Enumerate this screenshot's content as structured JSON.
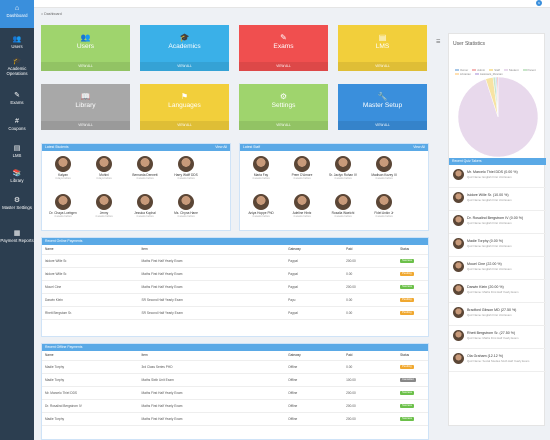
{
  "topbar": {
    "left_text": "",
    "right_text": "",
    "bell_count": "9"
  },
  "sidebar": {
    "items": [
      {
        "label": "Dashboard",
        "icon": "home-icon",
        "glyph": "⌂"
      },
      {
        "label": "Users",
        "icon": "users-icon",
        "glyph": "👥"
      },
      {
        "label": "Academic Operations",
        "icon": "academic-icon",
        "glyph": "🎓"
      },
      {
        "label": "Exams",
        "icon": "exams-icon",
        "glyph": "✎"
      },
      {
        "label": "Coupons",
        "icon": "coupons-icon",
        "glyph": "#"
      },
      {
        "label": "LMS",
        "icon": "lms-icon",
        "glyph": "▤"
      },
      {
        "label": "Library",
        "icon": "library-icon",
        "glyph": "📚"
      },
      {
        "label": "Master Settings",
        "icon": "settings-icon",
        "glyph": "⚙"
      },
      {
        "label": "Payment Reports",
        "icon": "payment-icon",
        "glyph": "▦"
      }
    ]
  },
  "breadcrumb": {
    "home": "Dashboard"
  },
  "tiles": [
    {
      "title": "Users",
      "link": "VIEW ALL",
      "color": "#9fd46d",
      "glyph": "👥"
    },
    {
      "title": "Academics",
      "link": "VIEW ALL",
      "color": "#3ab0e8",
      "glyph": "🎓"
    },
    {
      "title": "Exams",
      "link": "VIEW ALL",
      "color": "#f04f4f",
      "glyph": "✎"
    },
    {
      "title": "LMS",
      "link": "VIEW ALL",
      "color": "#f2cf3b",
      "glyph": "▤"
    },
    {
      "title": "Library",
      "link": "VIEW ALL",
      "color": "#a8a8a8",
      "glyph": "📖"
    },
    {
      "title": "Languages",
      "link": "VIEW ALL",
      "color": "#f2cf3b",
      "glyph": "⚑"
    },
    {
      "title": "Settings",
      "link": "VIEW ALL",
      "color": "#9fd46d",
      "glyph": "⚙"
    },
    {
      "title": "Master Setup",
      "link": "VIEW ALL",
      "color": "#3a8fdc",
      "glyph": "🔧"
    }
  ],
  "latest_students": {
    "title": "Latest Students",
    "view_all": "View All",
    "people": [
      {
        "name": "Kalyan",
        "time": "4 days before"
      },
      {
        "name": "Mohini",
        "time": "4 days before"
      },
      {
        "name": "Bernarda Dennett",
        "time": "4 weeks before"
      },
      {
        "name": "Harry Wolff DDS",
        "time": "4 weeks before"
      },
      {
        "name": "Dr. Chaya Loebgen",
        "time": "4 weeks before"
      },
      {
        "name": "Jenny",
        "time": "4 weeks before"
      },
      {
        "name": "Jessica Kuphal",
        "time": "4 weeks before"
      },
      {
        "name": "Ms. Chyna Hane",
        "time": "4 weeks before"
      }
    ]
  },
  "latest_staff": {
    "title": "Latest Staff",
    "view_all": "View All",
    "people": [
      {
        "name": "Maria Fay",
        "time": "4 weeks before"
      },
      {
        "name": "Prem D'Amore",
        "time": "4 weeks before"
      },
      {
        "name": "Sr. Jaclyn Rohan IV",
        "time": "4 weeks before"
      },
      {
        "name": "Madison Kozey III",
        "time": "4 weeks before"
      },
      {
        "name": "Aniya Hoppe PhD",
        "time": "4 weeks before"
      },
      {
        "name": "Adeline Hintz",
        "time": "4 weeks before"
      },
      {
        "name": "Rosalia Waelchi",
        "time": "4 weeks before"
      },
      {
        "name": "Fidel Ankin Jr",
        "time": "4 weeks before"
      }
    ]
  },
  "online_payments": {
    "title": "Recent Online Payments",
    "headers": [
      "Name",
      "Item",
      "Gateway",
      "Paid",
      "Status"
    ],
    "rows": [
      {
        "name": "Isidore Wille Sr.",
        "item": "Maths First Half Yearly Exam",
        "gateway": "Paypal",
        "paid": "200.00",
        "status": "Success",
        "status_color": "#6cc04a"
      },
      {
        "name": "Isidore Wille Sr.",
        "item": "Maths First Half Yearly Exam",
        "gateway": "Paypal",
        "paid": "0.00",
        "status": "Pending",
        "status_color": "#f0a830"
      },
      {
        "name": "Mouel Cine",
        "item": "Maths First Half Yearly Exam",
        "gateway": "Paypal",
        "paid": "200.00",
        "status": "Success",
        "status_color": "#6cc04a"
      },
      {
        "name": "Darwin Klein",
        "item": "SR Second Half Yearly Exam",
        "gateway": "Payu",
        "paid": "0.00",
        "status": "Pending",
        "status_color": "#f0a830"
      },
      {
        "name": "Rhett Bergstom Sr.",
        "item": "SR Second Half Yearly Exam",
        "gateway": "Paypal",
        "paid": "0.00",
        "status": "Pending",
        "status_color": "#f0a830"
      }
    ]
  },
  "offline_payments": {
    "title": "Recent Offline Payments",
    "headers": [
      "Name",
      "Item",
      "Gateway",
      "Paid",
      "Status"
    ],
    "rows": [
      {
        "name": "Madie Torphy",
        "item": "3rd Class Series PHD",
        "gateway": "Offline",
        "paid": "0.00",
        "status": "Pending",
        "status_color": "#f0a830"
      },
      {
        "name": "Madie Torphy",
        "item": "Maths Sixth Unit Exam",
        "gateway": "Offline",
        "paid": "100.00",
        "status": "Cancelled",
        "status_color": "#888888"
      },
      {
        "name": "Mr. Marcelo Thiel DDS",
        "item": "Maths First Half Yearly Exam",
        "gateway": "Offline",
        "paid": "200.00",
        "status": "Success",
        "status_color": "#6cc04a"
      },
      {
        "name": "Dr. Rosalind Bergstrom IV",
        "item": "Maths First Half Yearly Exam",
        "gateway": "Offline",
        "paid": "200.00",
        "status": "Success",
        "status_color": "#6cc04a"
      },
      {
        "name": "Madie Torphy",
        "item": "Maths First Half Yearly Exam",
        "gateway": "Offline",
        "paid": "200.00",
        "status": "Success",
        "status_color": "#6cc04a"
      }
    ]
  },
  "user_statistics": {
    "title": "User Statistics",
    "legend": [
      {
        "label": "Owner",
        "color": "#a7c7e7"
      },
      {
        "label": "Admin",
        "color": "#f4b6b6"
      },
      {
        "label": "Staff",
        "color": "#f7e3a3"
      },
      {
        "label": "Student",
        "color": "#e8d9ec"
      },
      {
        "label": "Parent",
        "color": "#c8e6c9"
      },
      {
        "label": "Librarian",
        "color": "#ffe0b2"
      },
      {
        "label": "Assistant_librarian",
        "color": "#d1c4e9"
      }
    ],
    "chart_data": {
      "type": "pie",
      "slices": [
        {
          "label": "Student",
          "value": 95,
          "color": "#e8d9ec"
        },
        {
          "label": "Staff",
          "value": 3,
          "color": "#f7e3a3"
        },
        {
          "label": "Parent",
          "value": 1,
          "color": "#c8e6c9"
        },
        {
          "label": "Owner",
          "value": 0.5,
          "color": "#a7c7e7"
        },
        {
          "label": "Admin",
          "value": 0.5,
          "color": "#f4b6b6"
        }
      ]
    }
  },
  "recent_quiz": {
    "title": "Recent Quiz Takers",
    "items": [
      {
        "name": "Mr. Marcelo Thiel DDS (0.00 %)",
        "detail": "Quiz Name: English First Unit Exam"
      },
      {
        "name": "Isidore Wille Sr. (10.00 %)",
        "detail": "Quiz Name: English First Unit Exam"
      },
      {
        "name": "Dr. Rosalind Bergstrom IV (0.00 %)",
        "detail": "Quiz Name: English First Unit Exam"
      },
      {
        "name": "Madie Torphy (0.00 %)",
        "detail": "Quiz Name: English First Unit Exam"
      },
      {
        "name": "Mouel Cine (22.00 %)",
        "detail": "Quiz Name: English First Unit Exam"
      },
      {
        "name": "Darwin Klein (20.00 %)",
        "detail": "Quiz Name: Maths First Half Yearly Exam"
      },
      {
        "name": "Bradford Gibson MD (27.50 %)",
        "detail": "Quiz Name: English First Unit Exam"
      },
      {
        "name": "Rhett Bergstrom Sr. (27.50 %)",
        "detail": "Quiz Name: Maths First Half Yearly Exam"
      },
      {
        "name": "Ola Graham (12.12 %)",
        "detail": "Quiz Name: Social Studies Sixth Half Yearly Exam"
      }
    ]
  }
}
